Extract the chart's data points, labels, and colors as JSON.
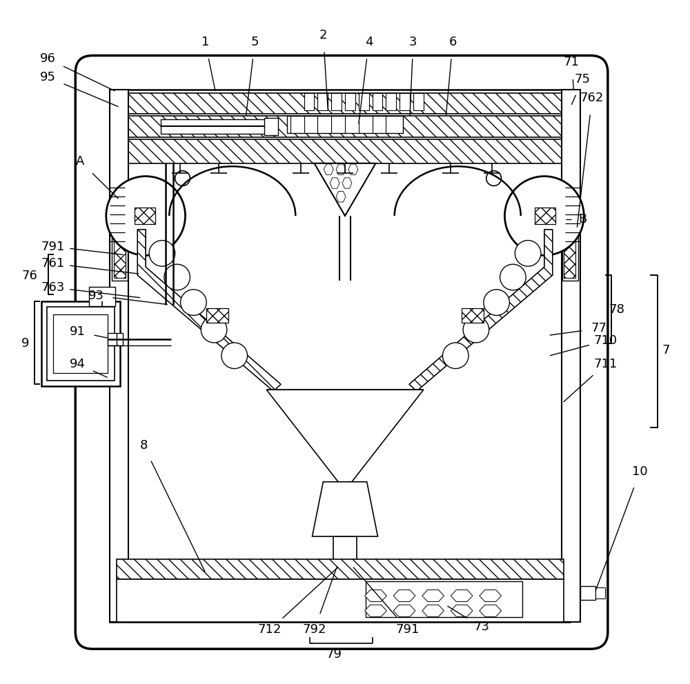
{
  "bg_color": "#ffffff",
  "line_color": "#000000",
  "fig_width": 10.0,
  "fig_height": 9.92
}
